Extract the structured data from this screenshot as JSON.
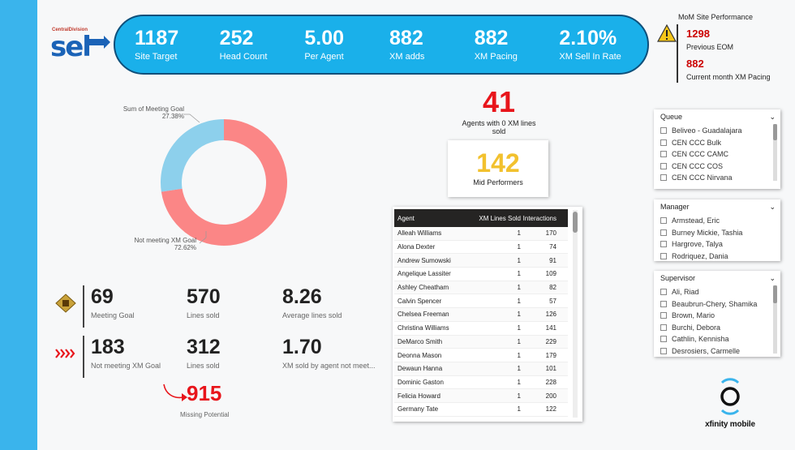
{
  "logo": {
    "small_text": "CentralDivision",
    "main_text": "sel"
  },
  "kpis": [
    {
      "value": "1187",
      "label": "Site Target"
    },
    {
      "value": "252",
      "label": "Head Count"
    },
    {
      "value": "5.00",
      "label": "Per Agent"
    },
    {
      "value": "882",
      "label": "XM adds"
    },
    {
      "value": "882",
      "label": "XM Pacing"
    },
    {
      "value": "2.10%",
      "label": "XM Sell In Rate"
    }
  ],
  "mom": {
    "title": "MoM Site Performance",
    "icon": "warning-icon",
    "prev_value": "1298",
    "prev_label": "Previous EOM",
    "curr_value": "882",
    "curr_label": "Current month XM Pacing"
  },
  "donut": {
    "label_meeting": "Sum of Meeting Goal",
    "pct_meeting": "27.38%",
    "label_not": "Not meeting XM Goal",
    "pct_not": "72.62%",
    "colors": {
      "meeting": "#8dd0ec",
      "not": "#fb8686"
    }
  },
  "chart_data": {
    "type": "pie",
    "categories": [
      "Sum of Meeting Goal",
      "Not meeting XM Goal"
    ],
    "values": [
      27.38,
      72.62
    ]
  },
  "agents_zero": {
    "value": "41",
    "label": "Agents with 0 XM lines sold"
  },
  "mid": {
    "value": "142",
    "label": "Mid Performers"
  },
  "table": {
    "headers": [
      "Agent",
      "XM Lines Sold",
      "Interactions"
    ],
    "rows": [
      [
        "Alleah Williams",
        "1",
        "170"
      ],
      [
        "Alona Dexter",
        "1",
        "74"
      ],
      [
        "Andrew Sumowski",
        "1",
        "91"
      ],
      [
        "Angelique Lassiter",
        "1",
        "109"
      ],
      [
        "Ashley Cheatham",
        "1",
        "82"
      ],
      [
        "Calvin Spencer",
        "1",
        "57"
      ],
      [
        "Chelsea Freeman",
        "1",
        "126"
      ],
      [
        "Christina Williams",
        "1",
        "141"
      ],
      [
        "DeMarco Smith",
        "1",
        "229"
      ],
      [
        "Deonna Mason",
        "1",
        "179"
      ],
      [
        "Dewaun Hanna",
        "1",
        "101"
      ],
      [
        "Dominic Gaston",
        "1",
        "228"
      ],
      [
        "Felicia Howard",
        "1",
        "200"
      ],
      [
        "Germany Tate",
        "1",
        "122"
      ]
    ]
  },
  "slicers": {
    "queue": {
      "title": "Queue",
      "items": [
        "Beliveo - Guadalajara",
        "CEN CCC Bulk",
        "CEN CCC CAMC",
        "CEN CCC COS",
        "CEN CCC Nirvana"
      ]
    },
    "manager": {
      "title": "Manager",
      "items": [
        "Armstead, Eric",
        "Burney Mickie, Tashia",
        "Hargrove, Talya",
        "Rodriquez, Dania"
      ]
    },
    "supervisor": {
      "title": "Supervisor",
      "items": [
        "Ali, Riad",
        "Beaubrun-Chery, Shamika",
        "Brown, Mario",
        "Burchi, Debora",
        "Cathlin, Kennisha",
        "Desrosiers, Carmelle"
      ]
    }
  },
  "stats_meeting": [
    {
      "value": "69",
      "label": "Meeting Goal"
    },
    {
      "value": "570",
      "label": "Lines sold"
    },
    {
      "value": "8.26",
      "label": "Average lines sold"
    }
  ],
  "stats_not": [
    {
      "value": "183",
      "label": "Not meeting XM Goal"
    },
    {
      "value": "312",
      "label": "Lines sold"
    },
    {
      "value": "1.70",
      "label": "XM sold by agent not meet..."
    }
  ],
  "missing": {
    "value": "915",
    "label": "Missing Potential"
  },
  "brand": {
    "text": "xfinity mobile"
  }
}
